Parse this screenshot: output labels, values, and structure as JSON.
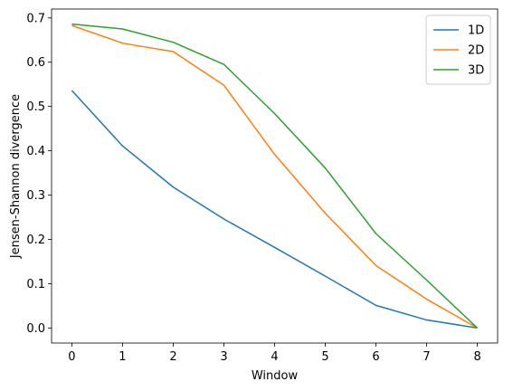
{
  "chart_data": {
    "type": "line",
    "title": "",
    "xlabel": "Window",
    "ylabel": "Jensen-Shannon divergence",
    "xlim": [
      -0.4,
      8.4
    ],
    "ylim": [
      -0.034,
      0.72
    ],
    "xticks": [
      0,
      1,
      2,
      3,
      4,
      5,
      6,
      7,
      8
    ],
    "yticks": [
      0.0,
      0.1,
      0.2,
      0.3,
      0.4,
      0.5,
      0.6,
      0.7
    ],
    "ytick_labels": [
      "0.0",
      "0.1",
      "0.2",
      "0.3",
      "0.4",
      "0.5",
      "0.6",
      "0.7"
    ],
    "grid": false,
    "legend_position": "top-right",
    "x": [
      0,
      1,
      2,
      3,
      4,
      5,
      6,
      7,
      8
    ],
    "series": [
      {
        "name": "1D",
        "color": "#1f77b4",
        "values": [
          0.536,
          0.411,
          0.318,
          0.246,
          0.182,
          0.117,
          0.051,
          0.018,
          0.0
        ]
      },
      {
        "name": "2D",
        "color": "#ff7f0e",
        "values": [
          0.683,
          0.643,
          0.624,
          0.548,
          0.392,
          0.259,
          0.141,
          0.065,
          0.0
        ]
      },
      {
        "name": "3D",
        "color": "#2ca02c",
        "values": [
          0.686,
          0.675,
          0.645,
          0.595,
          0.484,
          0.361,
          0.213,
          0.108,
          0.0
        ]
      }
    ]
  }
}
